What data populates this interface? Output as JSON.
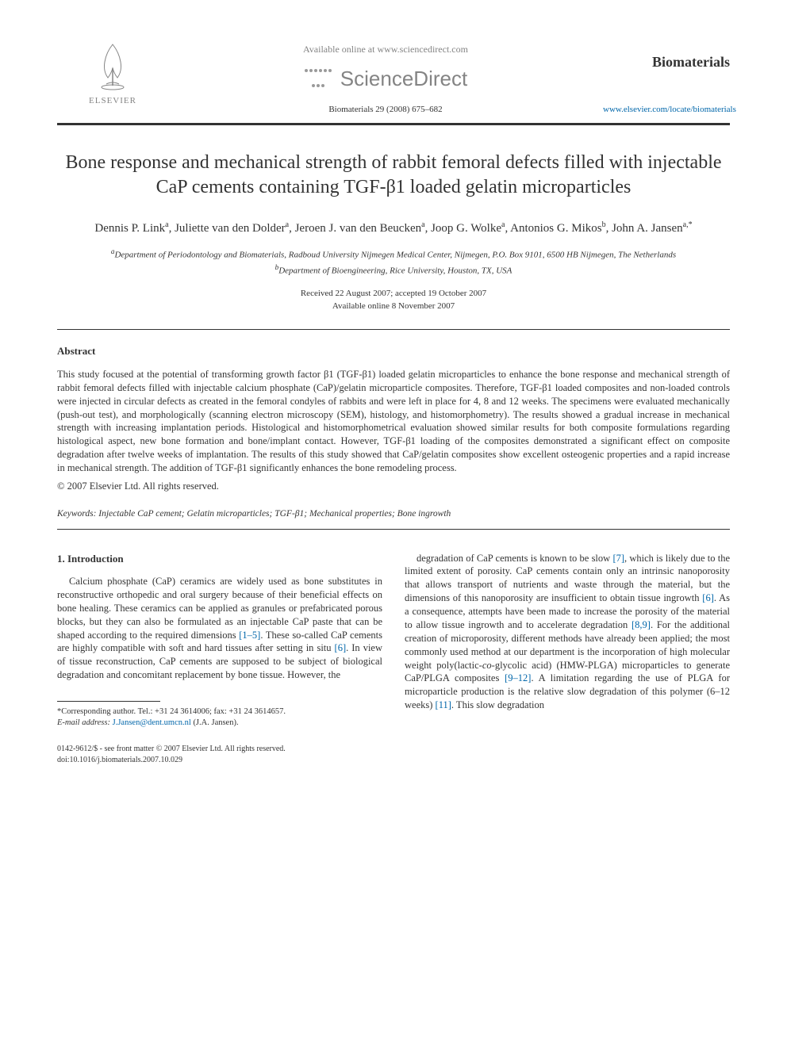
{
  "header": {
    "available_line": "Available online at www.sciencedirect.com",
    "sd_name": "ScienceDirect",
    "elsevier_label": "ELSEVIER",
    "journal_ref": "Biomaterials 29 (2008) 675–682",
    "journal_brand": "Biomaterials",
    "journal_site": "www.elsevier.com/locate/biomaterials"
  },
  "title": "Bone response and mechanical strength of rabbit femoral defects filled with injectable CaP cements containing TGF-β1 loaded gelatin microparticles",
  "authors_html": "Dennis P. Link<sup>a</sup>, Juliette van den Dolder<sup>a</sup>, Jeroen J. van den Beucken<sup>a</sup>, Joop G. Wolke<sup>a</sup>, Antonios G. Mikos<sup>b</sup>, John A. Jansen<sup>a,*</sup>",
  "affiliations": {
    "a": "Department of Periodontology and Biomaterials, Radboud University Nijmegen Medical Center, Nijmegen, P.O. Box 9101, 6500 HB Nijmegen, The Netherlands",
    "b": "Department of Bioengineering, Rice University, Houston, TX, USA"
  },
  "dates": {
    "received_accepted": "Received 22 August 2007; accepted 19 October 2007",
    "online": "Available online 8 November 2007"
  },
  "abstract": {
    "heading": "Abstract",
    "text": "This study focused at the potential of transforming growth factor β1 (TGF-β1) loaded gelatin microparticles to enhance the bone response and mechanical strength of rabbit femoral defects filled with injectable calcium phosphate (CaP)/gelatin microparticle composites. Therefore, TGF-β1 loaded composites and non-loaded controls were injected in circular defects as created in the femoral condyles of rabbits and were left in place for 4, 8 and 12 weeks. The specimens were evaluated mechanically (push-out test), and morphologically (scanning electron microscopy (SEM), histology, and histomorphometry). The results showed a gradual increase in mechanical strength with increasing implantation periods. Histological and histomorphometrical evaluation showed similar results for both composite formulations regarding histological aspect, new bone formation and bone/implant contact. However, TGF-β1 loading of the composites demonstrated a significant effect on composite degradation after twelve weeks of implantation. The results of this study showed that CaP/gelatin composites show excellent osteogenic properties and a rapid increase in mechanical strength. The addition of TGF-β1 significantly enhances the bone remodeling process.",
    "copyright": "© 2007 Elsevier Ltd. All rights reserved."
  },
  "keywords": {
    "label": "Keywords:",
    "text": "Injectable CaP cement; Gelatin microparticles; TGF-β1; Mechanical properties; Bone ingrowth"
  },
  "intro": {
    "heading": "1. Introduction",
    "col1": "Calcium phosphate (CaP) ceramics are widely used as bone substitutes in reconstructive orthopedic and oral surgery because of their beneficial effects on bone healing. These ceramics can be applied as granules or prefabricated porous blocks, but they can also be formulated as an injectable CaP paste that can be shaped according to the required dimensions [1–5]. These so-called CaP cements are highly compatible with soft and hard tissues after setting in situ [6]. In view of tissue reconstruction, CaP cements are supposed to be subject of biological degradation and concomitant replacement by bone tissue. However, the",
    "col2": "degradation of CaP cements is known to be slow [7], which is likely due to the limited extent of porosity. CaP cements contain only an intrinsic nanoporosity that allows transport of nutrients and waste through the material, but the dimensions of this nanoporosity are insufficient to obtain tissue ingrowth [6]. As a consequence, attempts have been made to increase the porosity of the material to allow tissue ingrowth and to accelerate degradation [8,9]. For the additional creation of microporosity, different methods have already been applied; the most commonly used method at our department is the incorporation of high molecular weight poly(lactic-co-glycolic acid) (HMW-PLGA) microparticles to generate CaP/PLGA composites [9–12]. A limitation regarding the use of PLGA for microparticle production is the relative slow degradation of this polymer (6–12 weeks) [11]. This slow degradation"
  },
  "refs": {
    "r1_5": "[1–5]",
    "r6a": "[6]",
    "r7": "[7]",
    "r6b": "[6]",
    "r8_9": "[8,9]",
    "r9_12": "[9–12]",
    "r11": "[11]"
  },
  "footnote": {
    "corr": "*Corresponding author. Tel.: +31 24 3614006; fax: +31 24 3614657.",
    "email_label": "E-mail address:",
    "email": "J.Jansen@dent.umcn.nl",
    "email_name": "(J.A. Jansen)."
  },
  "footer": {
    "left": "0142-9612/$ - see front matter © 2007 Elsevier Ltd. All rights reserved.",
    "doi": "doi:10.1016/j.biomaterials.2007.10.029"
  },
  "colors": {
    "text": "#333333",
    "link": "#0066aa",
    "muted": "#848484",
    "background": "#ffffff"
  }
}
